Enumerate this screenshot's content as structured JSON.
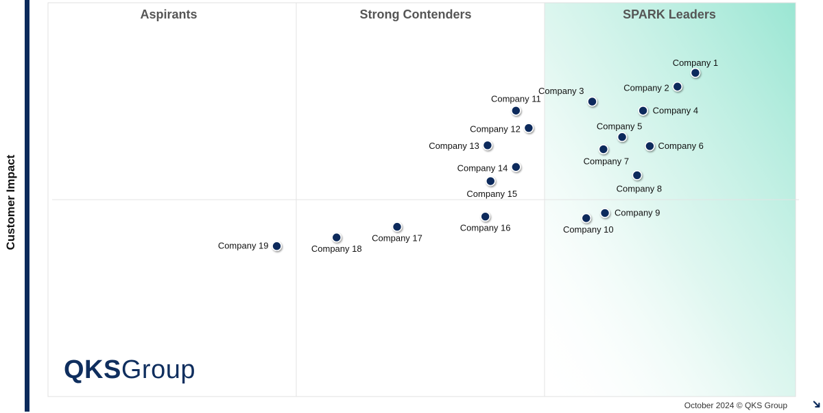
{
  "chart_data": {
    "type": "scatter",
    "quadrants": [
      "Aspirants",
      "Strong Contenders",
      "SPARK Leaders"
    ],
    "ylabel": "Customer Impact",
    "xlabel": "",
    "xlim": [
      0,
      100
    ],
    "ylim": [
      0,
      100
    ],
    "divider_y": 50,
    "points": [
      {
        "name": "Company 1",
        "x": 86.6,
        "y": 82.2
      },
      {
        "name": "Company 2",
        "x": 84.2,
        "y": 78.7
      },
      {
        "name": "Company 3",
        "x": 72.8,
        "y": 74.9
      },
      {
        "name": "Company 4",
        "x": 79.6,
        "y": 72.6
      },
      {
        "name": "Company 5",
        "x": 76.8,
        "y": 65.9
      },
      {
        "name": "Company 6",
        "x": 80.5,
        "y": 63.6
      },
      {
        "name": "Company 7",
        "x": 74.3,
        "y": 62.8
      },
      {
        "name": "Company 8",
        "x": 78.8,
        "y": 56.2
      },
      {
        "name": "Company 9",
        "x": 74.5,
        "y": 46.6
      },
      {
        "name": "Company 10",
        "x": 72.0,
        "y": 45.3
      },
      {
        "name": "Company 11",
        "x": 62.6,
        "y": 72.6
      },
      {
        "name": "Company 12",
        "x": 64.3,
        "y": 68.2
      },
      {
        "name": "Company 13",
        "x": 58.8,
        "y": 63.8
      },
      {
        "name": "Company 14",
        "x": 62.6,
        "y": 58.3
      },
      {
        "name": "Company 15",
        "x": 59.2,
        "y": 54.7
      },
      {
        "name": "Company 16",
        "x": 58.5,
        "y": 45.7
      },
      {
        "name": "Company 17",
        "x": 46.7,
        "y": 43.1
      },
      {
        "name": "Company 18",
        "x": 38.6,
        "y": 40.4
      },
      {
        "name": "Company 19",
        "x": 30.6,
        "y": 38.2
      }
    ]
  },
  "footer": "October 2024 © QKS Group",
  "logo": {
    "bold": "QKS",
    "light": "Group"
  },
  "colors": {
    "point": "#0b2a5b",
    "axis": "#0b2a5b",
    "leader_gradient": "#9ae6d3"
  }
}
